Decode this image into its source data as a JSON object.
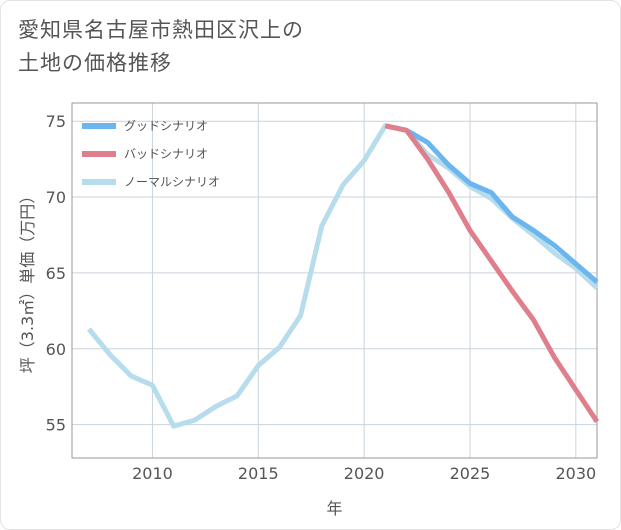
{
  "title_line1": "愛知県名古屋市熱田区沢上の",
  "title_line2": "土地の価格推移",
  "chart_data": {
    "type": "line",
    "xlabel": "年",
    "ylabel": "坪（3.3㎡）単価（万円）",
    "xlim": [
      2006.2,
      2031
    ],
    "ylim": [
      52.8,
      76.2
    ],
    "xticks": [
      2010,
      2015,
      2020,
      2025,
      2030
    ],
    "yticks": [
      55,
      60,
      65,
      70,
      75
    ],
    "grid": true,
    "legend_position": "top-left",
    "series": [
      {
        "name": "グッドシナリオ",
        "color": "#6bb6ef",
        "points": [
          [
            2021,
            74.7
          ],
          [
            2022,
            74.4
          ],
          [
            2023,
            73.6
          ],
          [
            2024,
            72.1
          ],
          [
            2025,
            70.9
          ],
          [
            2026,
            70.3
          ],
          [
            2027,
            68.7
          ],
          [
            2028,
            67.8
          ],
          [
            2029,
            66.8
          ],
          [
            2030,
            65.6
          ],
          [
            2031,
            64.4
          ]
        ]
      },
      {
        "name": "バッドシナリオ",
        "color": "#e07f8c",
        "points": [
          [
            2021,
            74.7
          ],
          [
            2022,
            74.4
          ],
          [
            2023,
            72.5
          ],
          [
            2024,
            70.3
          ],
          [
            2025,
            67.8
          ],
          [
            2026,
            65.8
          ],
          [
            2027,
            63.8
          ],
          [
            2028,
            61.9
          ],
          [
            2029,
            59.4
          ],
          [
            2030,
            57.3
          ],
          [
            2031,
            55.2
          ]
        ]
      },
      {
        "name": "ノーマルシナリオ",
        "color": "#b7dcec",
        "points": [
          [
            2007,
            61.3
          ],
          [
            2008,
            59.6
          ],
          [
            2009,
            58.2
          ],
          [
            2010,
            57.6
          ],
          [
            2011,
            54.9
          ],
          [
            2012,
            55.3
          ],
          [
            2013,
            56.2
          ],
          [
            2014,
            56.9
          ],
          [
            2015,
            58.9
          ],
          [
            2016,
            60.1
          ],
          [
            2017,
            62.2
          ],
          [
            2018,
            68.1
          ],
          [
            2019,
            70.8
          ],
          [
            2020,
            72.4
          ],
          [
            2021,
            74.7
          ],
          [
            2022,
            74.4
          ],
          [
            2023,
            72.8
          ],
          [
            2024,
            71.9
          ],
          [
            2025,
            70.7
          ],
          [
            2026,
            69.9
          ],
          [
            2027,
            68.6
          ],
          [
            2028,
            67.5
          ],
          [
            2029,
            66.3
          ],
          [
            2030,
            65.3
          ],
          [
            2031,
            64.0
          ]
        ]
      }
    ]
  }
}
